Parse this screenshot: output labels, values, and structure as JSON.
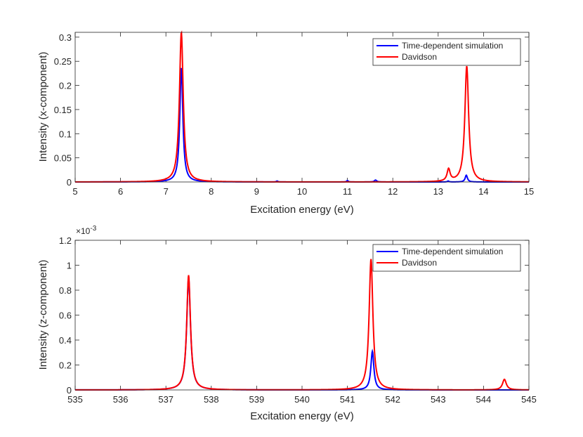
{
  "chart_data": [
    {
      "type": "line",
      "xlabel": "Excitation energy (eV)",
      "ylabel": "Intensity (x-component)",
      "xlim": [
        5,
        15
      ],
      "ylim": [
        0,
        0.31
      ],
      "xticks": [
        5,
        6,
        7,
        8,
        9,
        10,
        11,
        12,
        13,
        14,
        15
      ],
      "xtick_labels": [
        "5",
        "6",
        "7",
        "8",
        "9",
        "10",
        "11",
        "12",
        "13",
        "14",
        "15"
      ],
      "yticks": [
        0,
        0.05,
        0.1,
        0.15,
        0.2,
        0.25,
        0.3
      ],
      "ytick_labels": [
        "0",
        "0.05",
        "0.1",
        "0.15",
        "0.2",
        "0.25",
        "0.3"
      ],
      "y_exponent_label": "",
      "legend_position": "top-right",
      "series": [
        {
          "name": "Time-dependent simulation",
          "color": "#0000ff",
          "peaks": [
            {
              "center": 7.34,
              "height": 0.237,
              "width": 0.04
            },
            {
              "center": 9.45,
              "height": 0.002,
              "width": 0.02
            },
            {
              "center": 11.0,
              "height": 0.003,
              "width": 0.02
            },
            {
              "center": 11.62,
              "height": 0.004,
              "width": 0.03
            },
            {
              "center": 13.22,
              "height": 0.002,
              "width": 0.02
            },
            {
              "center": 13.62,
              "height": 0.014,
              "width": 0.03
            }
          ]
        },
        {
          "name": "Davidson",
          "color": "#ff0000",
          "peaks": [
            {
              "center": 7.34,
              "height": 0.31,
              "width": 0.05
            },
            {
              "center": 13.23,
              "height": 0.025,
              "width": 0.04
            },
            {
              "center": 13.63,
              "height": 0.24,
              "width": 0.05
            }
          ]
        }
      ]
    },
    {
      "type": "line",
      "xlabel": "Excitation energy (eV)",
      "ylabel": "Intensity (z-component)",
      "xlim": [
        535,
        545
      ],
      "ylim": [
        0,
        0.0012
      ],
      "xticks": [
        535,
        536,
        537,
        538,
        539,
        540,
        541,
        542,
        543,
        544,
        545
      ],
      "xtick_labels": [
        "535",
        "536",
        "537",
        "538",
        "539",
        "540",
        "541",
        "542",
        "543",
        "544",
        "545"
      ],
      "yticks": [
        0,
        0.0002,
        0.0004,
        0.0006,
        0.0008,
        0.001,
        0.0012
      ],
      "ytick_labels": [
        "0",
        "0.2",
        "0.4",
        "0.6",
        "0.8",
        "1",
        "1.2"
      ],
      "y_exponent_label": "×10",
      "y_exponent_power": "-3",
      "legend_position": "top-right",
      "series": [
        {
          "name": "Time-dependent simulation",
          "color": "#0000ff",
          "peaks": [
            {
              "center": 537.5,
              "height": 0.0009,
              "width": 0.05
            },
            {
              "center": 541.55,
              "height": 0.00031,
              "width": 0.04
            }
          ]
        },
        {
          "name": "Davidson",
          "color": "#ff0000",
          "peaks": [
            {
              "center": 537.5,
              "height": 0.00092,
              "width": 0.05
            },
            {
              "center": 541.52,
              "height": 0.00105,
              "width": 0.05
            },
            {
              "center": 544.46,
              "height": 8.5e-05,
              "width": 0.05
            }
          ]
        }
      ]
    }
  ]
}
